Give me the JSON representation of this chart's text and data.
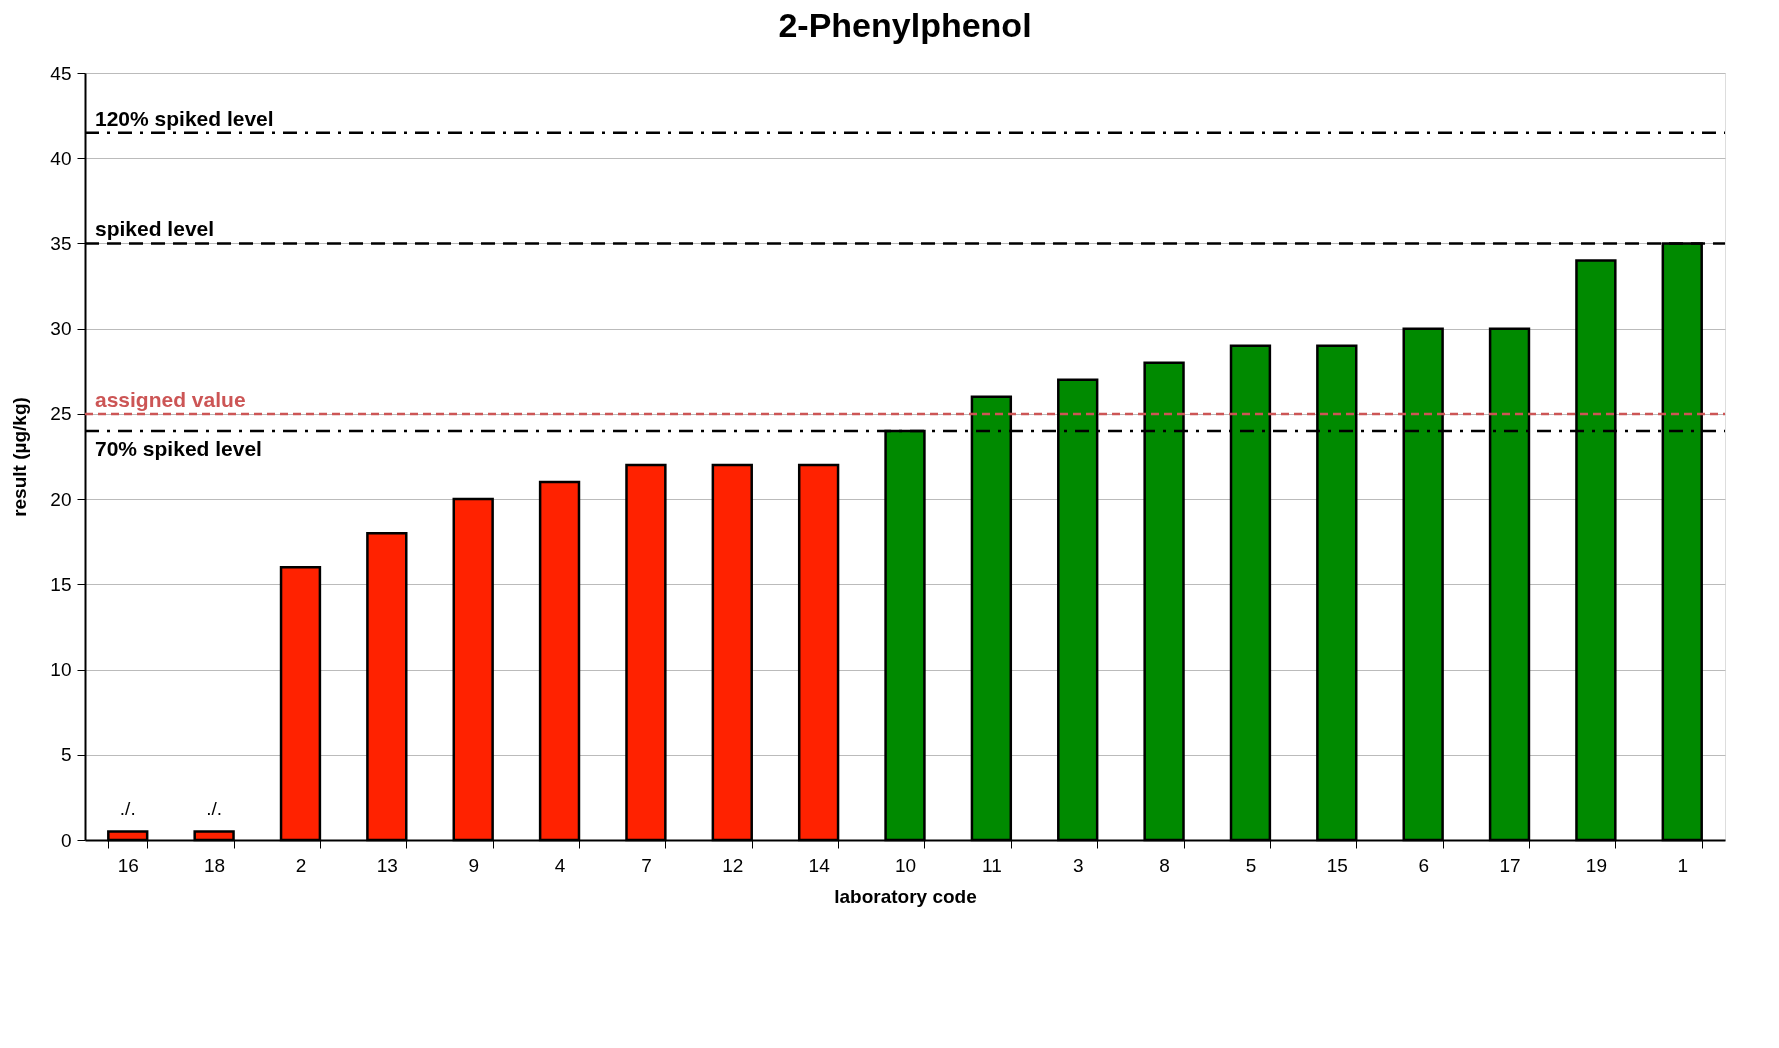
{
  "chart_data": {
    "type": "bar",
    "title": "2-Phenylphenol",
    "xlabel": "laboratory code",
    "ylabel": "result (µg/kg)",
    "categories": [
      "16",
      "18",
      "2",
      "13",
      "9",
      "4",
      "7",
      "12",
      "14",
      "10",
      "11",
      "3",
      "8",
      "5",
      "15",
      "6",
      "17",
      "19",
      "1"
    ],
    "values": [
      0.5,
      0.5,
      16,
      18,
      20,
      21,
      22,
      22,
      22,
      24,
      26,
      27,
      28,
      29,
      29,
      30,
      30,
      34,
      35
    ],
    "colors": [
      "#ff2200",
      "#ff2200",
      "#ff2200",
      "#ff2200",
      "#ff2200",
      "#ff2200",
      "#ff2200",
      "#ff2200",
      "#ff2200",
      "#008a00",
      "#008a00",
      "#008a00",
      "#008a00",
      "#008a00",
      "#008a00",
      "#008a00",
      "#008a00",
      "#008a00",
      "#008a00"
    ],
    "value_labels": [
      "./.",
      "./.",
      null,
      null,
      null,
      null,
      null,
      null,
      null,
      null,
      null,
      null,
      null,
      null,
      null,
      null,
      null,
      null,
      null
    ],
    "ylim": [
      0,
      45
    ],
    "yticks": [
      0,
      5,
      10,
      15,
      20,
      25,
      30,
      35,
      40,
      45
    ],
    "grid": "y",
    "ref_lines": [
      {
        "axis": "y",
        "value": 41.5,
        "label": "120% spiked level",
        "color": "#000000",
        "line_style": "dashdot"
      },
      {
        "axis": "y",
        "value": 35,
        "label": "spiked level",
        "color": "#000000",
        "line_style": "dashed"
      },
      {
        "axis": "y",
        "value": 25,
        "label": "assigned value",
        "color": "#cc5555",
        "line_style": "dashed"
      },
      {
        "axis": "y",
        "value": 24,
        "label": "70% spiked level",
        "color": "#000000",
        "line_style": "dashdot"
      }
    ]
  }
}
